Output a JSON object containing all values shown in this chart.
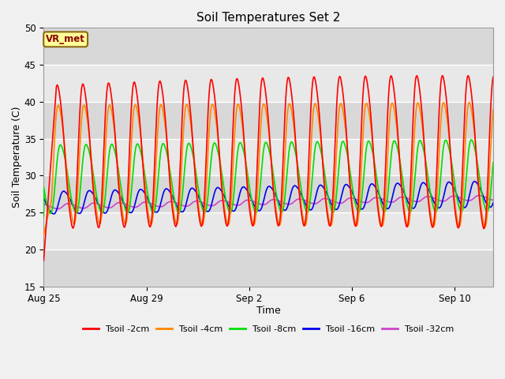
{
  "title": "Soil Temperatures Set 2",
  "xlabel": "Time",
  "ylabel": "Soil Temperature (C)",
  "ylim": [
    15,
    50
  ],
  "yticks": [
    15,
    20,
    25,
    30,
    35,
    40,
    45,
    50
  ],
  "fig_bg_color": "#f0f0f0",
  "plot_bg_color": "#e0e0e0",
  "band_colors": [
    "#d8d8d8",
    "#e8e8e8"
  ],
  "annotation_text": "VR_met",
  "annotation_bg": "#ffff99",
  "annotation_border": "#8B6914",
  "series": {
    "Tsoil -2cm": {
      "color": "#ff0000",
      "lw": 1.2
    },
    "Tsoil -4cm": {
      "color": "#ff8800",
      "lw": 1.2
    },
    "Tsoil -8cm": {
      "color": "#00dd00",
      "lw": 1.2
    },
    "Tsoil -16cm": {
      "color": "#0000ee",
      "lw": 1.2
    },
    "Tsoil -32cm": {
      "color": "#cc44cc",
      "lw": 1.2
    }
  },
  "xtick_dates": [
    "Aug 25",
    "Aug 29",
    "Sep 2",
    "Sep 6",
    "Sep 10"
  ],
  "xtick_vals": [
    0,
    4,
    8,
    12,
    16
  ],
  "total_days": 17.5,
  "grid_color": "#ffffff",
  "grid_lw": 1.0
}
